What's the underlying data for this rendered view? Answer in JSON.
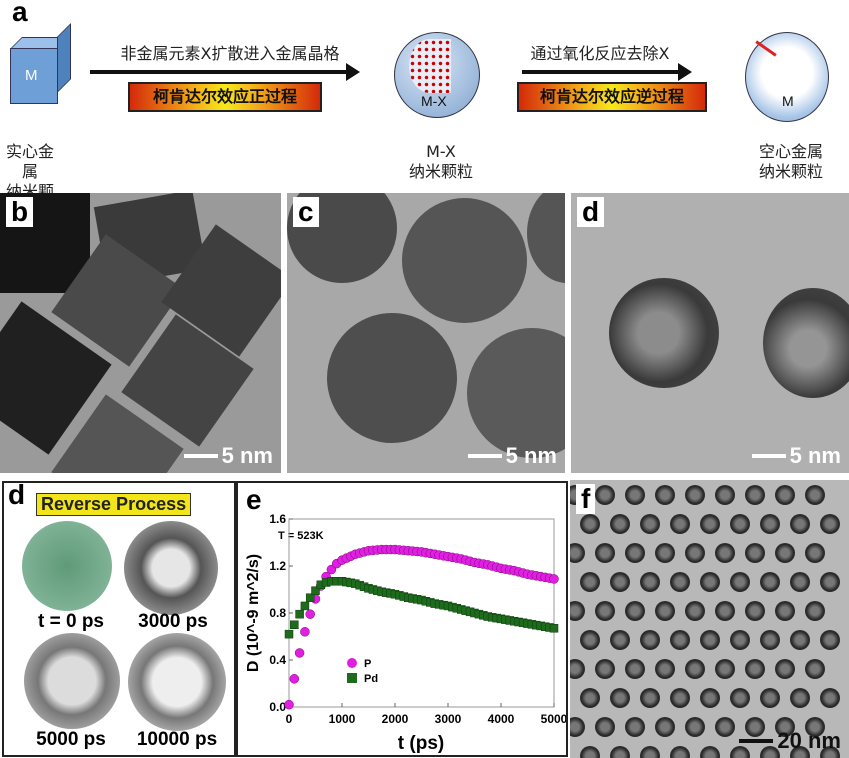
{
  "panel_a": {
    "label": "a",
    "cube_label": "M",
    "arrow1_text": "非金属元素X扩散进入金属晶格",
    "process1": "柯肯达尔效应正过程",
    "mx_label": "M-X",
    "arrow2_text": "通过氧化反应去除X",
    "process2": "柯肯达尔效应逆过程",
    "hollow_label": "M",
    "caption_left": [
      "实心金属",
      "纳米颗粒"
    ],
    "caption_mid": [
      "M-X",
      "纳米颗粒"
    ],
    "caption_right": [
      "空心金属",
      "纳米颗粒"
    ]
  },
  "panel_b": {
    "label": "b",
    "scale": "5 nm"
  },
  "panel_c": {
    "label": "c",
    "scale": "5 nm"
  },
  "panel_d_tem": {
    "label": "d",
    "scale": "5 nm"
  },
  "panel_d_sim": {
    "label": "d",
    "title": "Reverse Process",
    "frames": [
      "t = 0 ps",
      "3000 ps",
      "5000 ps",
      "10000 ps"
    ]
  },
  "panel_f": {
    "label": "f",
    "scale": "20 nm"
  },
  "chart_data": {
    "type": "scatter",
    "panel_label": "e",
    "annotation": "T = 523K",
    "xlabel": "t (ps)",
    "ylabel": "D (10^-9 m^2/s)",
    "xlim": [
      0,
      5000
    ],
    "ylim": [
      0,
      1.6
    ],
    "xticks": [
      "0",
      "1000",
      "2000",
      "3000",
      "4000",
      "5000"
    ],
    "yticks": [
      "0.0",
      "0.4",
      "0.8",
      "1.2",
      "1.6"
    ],
    "legend_position": "center-left",
    "x": [
      0,
      100,
      200,
      300,
      400,
      500,
      600,
      700,
      800,
      900,
      1000,
      1250,
      1500,
      1750,
      2000,
      2250,
      2500,
      2750,
      3000,
      3250,
      3500,
      3750,
      4000,
      4250,
      4500,
      4750,
      5000
    ],
    "series": [
      {
        "name": "P",
        "color": "#e020e0",
        "marker": "circle",
        "values": [
          0.02,
          0.24,
          0.46,
          0.64,
          0.79,
          0.92,
          1.03,
          1.11,
          1.17,
          1.22,
          1.25,
          1.3,
          1.33,
          1.34,
          1.34,
          1.33,
          1.32,
          1.3,
          1.28,
          1.26,
          1.23,
          1.21,
          1.18,
          1.16,
          1.13,
          1.11,
          1.09
        ]
      },
      {
        "name": "Pd",
        "color": "#1e6b1e",
        "marker": "square",
        "values": [
          0.62,
          0.7,
          0.79,
          0.86,
          0.93,
          0.99,
          1.04,
          1.06,
          1.07,
          1.07,
          1.07,
          1.05,
          1.01,
          0.98,
          0.96,
          0.93,
          0.91,
          0.88,
          0.86,
          0.83,
          0.8,
          0.77,
          0.75,
          0.73,
          0.71,
          0.69,
          0.67
        ]
      }
    ]
  }
}
